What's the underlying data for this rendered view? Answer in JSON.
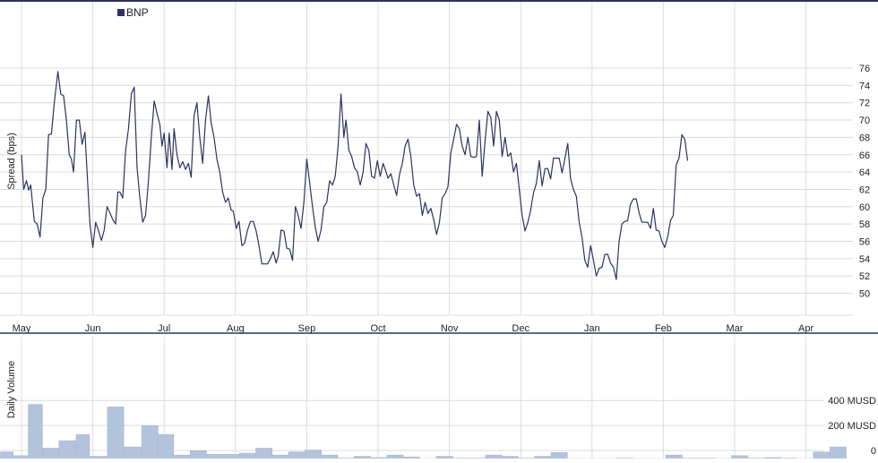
{
  "legend": {
    "label": "BNP",
    "color": "#2d3360"
  },
  "colors": {
    "line": "#2d3360",
    "grid": "#dcdcdc",
    "volume_fill": "#b4c3dc",
    "volume_stroke": "#a3b4cf",
    "text": "#222222",
    "frame": "#2d3360"
  },
  "chart_data": [
    {
      "type": "line",
      "series": [
        {
          "name": "BNP",
          "values": []
        }
      ],
      "ylabel": "Spread (bps)",
      "ylim": [
        50,
        76
      ],
      "yticks": [
        50,
        52,
        54,
        56,
        58,
        60,
        62,
        64,
        66,
        68,
        70,
        72,
        74,
        76
      ],
      "xticks": [
        "May",
        "Jun",
        "Jul",
        "Aug",
        "Sep",
        "Oct",
        "Nov",
        "Dec",
        "Jan",
        "Feb",
        "Mar",
        "Apr"
      ],
      "points": [
        [
          0,
          66
        ],
        [
          0.03,
          62
        ],
        [
          0.07,
          63
        ],
        [
          0.1,
          61.9
        ],
        [
          0.13,
          62.5
        ],
        [
          0.15,
          60.8
        ],
        [
          0.18,
          58.3
        ],
        [
          0.22,
          58
        ],
        [
          0.26,
          56.5
        ],
        [
          0.3,
          61
        ],
        [
          0.34,
          62
        ],
        [
          0.38,
          68.3
        ],
        [
          0.42,
          68.4
        ],
        [
          0.46,
          72
        ],
        [
          0.51,
          75.6
        ],
        [
          0.55,
          73
        ],
        [
          0.59,
          72.8
        ],
        [
          0.63,
          70
        ],
        [
          0.67,
          66
        ],
        [
          0.7,
          65.5
        ],
        [
          0.73,
          64
        ],
        [
          0.77,
          70
        ],
        [
          0.81,
          70
        ],
        [
          0.85,
          67.2
        ],
        [
          0.89,
          68.6
        ],
        [
          0.92,
          64
        ],
        [
          0.96,
          58
        ],
        [
          1,
          55.3
        ],
        [
          1.04,
          58.2
        ],
        [
          1.08,
          57.2
        ],
        [
          1.12,
          56.1
        ],
        [
          1.16,
          57.3
        ],
        [
          1.2,
          60
        ],
        [
          1.24,
          59.3
        ],
        [
          1.28,
          58.5
        ],
        [
          1.32,
          58
        ],
        [
          1.35,
          61.7
        ],
        [
          1.38,
          61.7
        ],
        [
          1.42,
          61
        ],
        [
          1.46,
          66.5
        ],
        [
          1.5,
          69
        ],
        [
          1.54,
          73
        ],
        [
          1.58,
          73.8
        ],
        [
          1.62,
          64.5
        ],
        [
          1.66,
          61
        ],
        [
          1.7,
          58.2
        ],
        [
          1.74,
          59
        ],
        [
          1.78,
          63
        ],
        [
          1.82,
          68
        ],
        [
          1.86,
          72.2
        ],
        [
          1.9,
          70.8
        ],
        [
          1.94,
          69.5
        ],
        [
          1.97,
          67
        ],
        [
          2,
          68.5
        ],
        [
          2.04,
          64.5
        ],
        [
          2.07,
          68.5
        ],
        [
          2.11,
          64.3
        ],
        [
          2.14,
          69
        ],
        [
          2.18,
          66
        ],
        [
          2.22,
          64.5
        ],
        [
          2.26,
          65.2
        ],
        [
          2.3,
          64.3
        ],
        [
          2.34,
          65
        ],
        [
          2.38,
          63.4
        ],
        [
          2.42,
          70.5
        ],
        [
          2.46,
          72
        ],
        [
          2.5,
          68
        ],
        [
          2.54,
          65
        ],
        [
          2.58,
          70
        ],
        [
          2.62,
          72.8
        ],
        [
          2.66,
          69.7
        ],
        [
          2.7,
          68
        ],
        [
          2.74,
          65.5
        ],
        [
          2.78,
          64
        ],
        [
          2.82,
          61.7
        ],
        [
          2.86,
          60.5
        ],
        [
          2.9,
          61
        ],
        [
          2.94,
          59.6
        ],
        [
          2.97,
          59.5
        ],
        [
          3.01,
          57.5
        ],
        [
          3.05,
          58.3
        ],
        [
          3.09,
          55.5
        ],
        [
          3.13,
          55.8
        ],
        [
          3.17,
          57.3
        ],
        [
          3.21,
          58.3
        ],
        [
          3.25,
          58.3
        ],
        [
          3.29,
          57.2
        ],
        [
          3.33,
          55.5
        ],
        [
          3.37,
          53.4
        ],
        [
          3.41,
          53.4
        ],
        [
          3.45,
          53.4
        ],
        [
          3.49,
          54
        ],
        [
          3.53,
          54.8
        ],
        [
          3.57,
          53.5
        ],
        [
          3.6,
          54.3
        ],
        [
          3.64,
          57.3
        ],
        [
          3.68,
          57.2
        ],
        [
          3.72,
          55.2
        ],
        [
          3.76,
          55.1
        ],
        [
          3.8,
          53.8
        ],
        [
          3.84,
          60
        ],
        [
          3.88,
          59
        ],
        [
          3.92,
          57.5
        ],
        [
          3.96,
          60.5
        ],
        [
          4,
          65.5
        ],
        [
          4.04,
          62.8
        ],
        [
          4.08,
          60
        ],
        [
          4.12,
          57.6
        ],
        [
          4.16,
          56
        ],
        [
          4.2,
          57.3
        ],
        [
          4.24,
          60
        ],
        [
          4.28,
          60.5
        ],
        [
          4.32,
          63
        ],
        [
          4.36,
          62.5
        ],
        [
          4.4,
          63.5
        ],
        [
          4.44,
          67
        ],
        [
          4.48,
          73
        ],
        [
          4.52,
          68
        ],
        [
          4.55,
          70
        ],
        [
          4.59,
          66.5
        ],
        [
          4.63,
          65.8
        ],
        [
          4.67,
          64.5
        ],
        [
          4.71,
          64
        ],
        [
          4.75,
          62.5
        ],
        [
          4.79,
          64
        ],
        [
          4.83,
          67.3
        ],
        [
          4.87,
          66.5
        ],
        [
          4.91,
          63.5
        ],
        [
          4.95,
          63.3
        ],
        [
          4.99,
          65.3
        ],
        [
          5.03,
          63.5
        ],
        [
          5.07,
          65
        ],
        [
          5.1,
          64.3
        ],
        [
          5.14,
          63.3
        ],
        [
          5.18,
          63.8
        ],
        [
          5.22,
          62.5
        ],
        [
          5.26,
          61.3
        ],
        [
          5.3,
          63.7
        ],
        [
          5.34,
          65
        ],
        [
          5.38,
          67
        ],
        [
          5.42,
          67.8
        ],
        [
          5.46,
          65.8
        ],
        [
          5.5,
          62.5
        ],
        [
          5.54,
          61.2
        ],
        [
          5.58,
          61.5
        ],
        [
          5.62,
          59
        ],
        [
          5.66,
          60.5
        ],
        [
          5.7,
          59.2
        ],
        [
          5.74,
          59.8
        ],
        [
          5.78,
          58.5
        ],
        [
          5.82,
          56.8
        ],
        [
          5.86,
          58.2
        ],
        [
          5.9,
          61
        ],
        [
          5.94,
          61.5
        ],
        [
          5.98,
          62.3
        ],
        [
          6.02,
          66.2
        ],
        [
          6.06,
          67.8
        ],
        [
          6.1,
          69.5
        ],
        [
          6.14,
          69
        ],
        [
          6.18,
          67
        ],
        [
          6.22,
          66
        ],
        [
          6.26,
          68
        ],
        [
          6.3,
          65.8
        ],
        [
          6.34,
          65.7
        ],
        [
          6.38,
          65.8
        ],
        [
          6.42,
          70
        ],
        [
          6.46,
          63.5
        ],
        [
          6.5,
          67.6
        ],
        [
          6.54,
          71
        ],
        [
          6.58,
          70.3
        ],
        [
          6.62,
          67
        ],
        [
          6.66,
          71
        ],
        [
          6.7,
          70
        ],
        [
          6.74,
          65.8
        ],
        [
          6.78,
          68
        ],
        [
          6.82,
          65.8
        ],
        [
          6.86,
          66.2
        ],
        [
          6.9,
          64
        ],
        [
          6.94,
          65
        ],
        [
          6.98,
          62
        ],
        [
          7.02,
          59
        ],
        [
          7.06,
          57.2
        ],
        [
          7.1,
          58.2
        ],
        [
          7.14,
          59.6
        ],
        [
          7.18,
          61.6
        ],
        [
          7.22,
          62.7
        ],
        [
          7.26,
          65.3
        ],
        [
          7.3,
          62.4
        ],
        [
          7.34,
          64.4
        ],
        [
          7.38,
          64.4
        ],
        [
          7.42,
          63.2
        ],
        [
          7.46,
          65.6
        ],
        [
          7.5,
          65.6
        ],
        [
          7.54,
          65.6
        ],
        [
          7.58,
          63.9
        ],
        [
          7.62,
          65.6
        ],
        [
          7.66,
          67.3
        ],
        [
          7.7,
          63.2
        ],
        [
          7.74,
          62
        ],
        [
          7.78,
          61.2
        ],
        [
          7.82,
          58.2
        ],
        [
          7.86,
          56.4
        ],
        [
          7.9,
          53.8
        ],
        [
          7.94,
          53
        ],
        [
          7.98,
          55.5
        ],
        [
          8.02,
          53.8
        ],
        [
          8.06,
          52
        ],
        [
          8.1,
          52.9
        ],
        [
          8.14,
          53
        ],
        [
          8.18,
          54.5
        ],
        [
          8.22,
          54.5
        ],
        [
          8.26,
          53.5
        ],
        [
          8.3,
          53
        ],
        [
          8.34,
          51.6
        ],
        [
          8.38,
          56
        ],
        [
          8.42,
          58
        ],
        [
          8.46,
          58.3
        ],
        [
          8.5,
          58.4
        ],
        [
          8.54,
          60.3
        ],
        [
          8.58,
          60.9
        ],
        [
          8.62,
          60.9
        ],
        [
          8.66,
          59.3
        ],
        [
          8.7,
          58.2
        ],
        [
          8.74,
          58.2
        ],
        [
          8.78,
          58.2
        ],
        [
          8.82,
          57.5
        ],
        [
          8.86,
          59.8
        ],
        [
          8.9,
          57.3
        ],
        [
          8.94,
          57.2
        ],
        [
          8.98,
          56
        ],
        [
          9.02,
          55.3
        ],
        [
          9.06,
          56.5
        ],
        [
          9.1,
          58.4
        ],
        [
          9.14,
          59
        ],
        [
          9.18,
          64.8
        ],
        [
          9.22,
          65.6
        ],
        [
          9.26,
          68.3
        ],
        [
          9.3,
          67.8
        ],
        [
          9.34,
          65.3
        ]
      ]
    },
    {
      "type": "bar",
      "series": [
        {
          "name": "Daily Volume",
          "values": []
        }
      ],
      "ylabel": "Daily Volume",
      "ylim": [
        0,
        480
      ],
      "ytick_labels": [
        "0",
        "200 MUSD",
        "400 MUSD"
      ],
      "ytick_values": [
        0,
        200,
        400
      ],
      "bars": [
        [
          0,
          0.18,
          60
        ],
        [
          0.18,
          0.39,
          30
        ],
        [
          0.39,
          0.59,
          440
        ],
        [
          0.59,
          0.82,
          90
        ],
        [
          0.82,
          1.06,
          150
        ],
        [
          1.06,
          1.25,
          200
        ],
        [
          1.25,
          1.5,
          25
        ],
        [
          1.5,
          1.73,
          420
        ],
        [
          1.73,
          1.98,
          100
        ],
        [
          1.98,
          2.21,
          270
        ],
        [
          2.21,
          2.43,
          200
        ],
        [
          2.43,
          2.66,
          35
        ],
        [
          2.66,
          2.89,
          70
        ],
        [
          2.89,
          3.12,
          40
        ],
        [
          3.12,
          3.35,
          40
        ],
        [
          3.35,
          3.58,
          50
        ],
        [
          3.58,
          3.81,
          90
        ],
        [
          3.81,
          4.04,
          35
        ],
        [
          4.04,
          4.27,
          60
        ],
        [
          4.27,
          4.5,
          75
        ],
        [
          4.5,
          4.73,
          35
        ],
        [
          4.73,
          4.96,
          10
        ],
        [
          4.96,
          5.19,
          25
        ],
        [
          5.19,
          5.42,
          15
        ],
        [
          5.42,
          5.65,
          35
        ],
        [
          5.65,
          5.88,
          20
        ],
        [
          5.88,
          6.11,
          5
        ],
        [
          6.11,
          6.34,
          25
        ],
        [
          6.34,
          6.57,
          10
        ],
        [
          6.57,
          6.8,
          10
        ],
        [
          6.8,
          7.03,
          35
        ],
        [
          7.03,
          7.26,
          25
        ],
        [
          7.26,
          7.49,
          10
        ],
        [
          7.49,
          7.72,
          25
        ],
        [
          7.72,
          7.95,
          55
        ],
        [
          7.95,
          8.18,
          5
        ],
        [
          8.18,
          8.41,
          0
        ],
        [
          8.41,
          8.64,
          5
        ],
        [
          8.64,
          8.87,
          10
        ],
        [
          8.87,
          9.1,
          5
        ],
        [
          9.1,
          9.33,
          5
        ],
        [
          9.33,
          9.56,
          35
        ],
        [
          9.56,
          9.79,
          10
        ],
        [
          9.79,
          10.02,
          10
        ],
        [
          10.02,
          10.25,
          5
        ],
        [
          10.25,
          10.48,
          30
        ],
        [
          10.48,
          10.71,
          10
        ],
        [
          10.71,
          10.94,
          15
        ],
        [
          10.94,
          11.17,
          10
        ],
        [
          11.17,
          11.4,
          5
        ],
        [
          11.4,
          11.63,
          60
        ],
        [
          11.63,
          11.86,
          100
        ]
      ]
    }
  ]
}
